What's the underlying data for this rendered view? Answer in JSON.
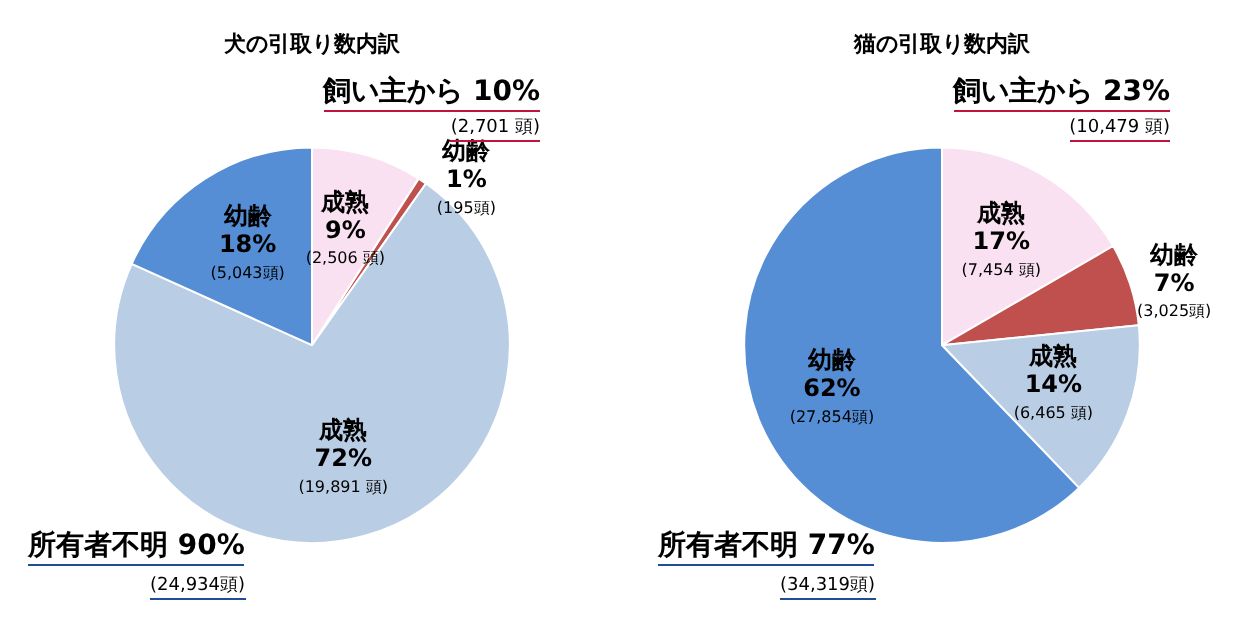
{
  "chart_data": [
    {
      "type": "pie",
      "title": "犬の引取り数内訳",
      "categories": [
        "成熟",
        "幼齢",
        "成熟",
        "幼齢"
      ],
      "values": [
        2506,
        195,
        19891,
        5043
      ],
      "colors": [
        "#f9e1f1",
        "#c0504d",
        "#b9cde5",
        "#558ed5"
      ],
      "value_labels": [
        "9%\n(2,506 頭)",
        "1%\n(195頭)",
        "72%\n(19,891 頭)",
        "18%\n(5,043頭)"
      ],
      "annotations": [
        "飼い主から 10%",
        "(2,701 頭)",
        "所有者不明 90%",
        "(24,934頭)"
      ]
    },
    {
      "type": "pie",
      "title": "猫の引取り数内訳",
      "categories": [
        "成熟",
        "幼齢",
        "成熟",
        "幼齢"
      ],
      "values": [
        7454,
        3025,
        6465,
        27854
      ],
      "colors": [
        "#f9e1f1",
        "#c0504d",
        "#b9cde5",
        "#558ed5"
      ],
      "value_labels": [
        "17%\n(7,454 頭)",
        "7%\n(3,025頭)",
        "14%\n(6,465 頭)",
        "62%\n(27,854頭)"
      ],
      "annotations": [
        "飼い主から 23%",
        "(10,479 頭)",
        "所有者不明 77%",
        "(34,319頭)"
      ]
    }
  ]
}
